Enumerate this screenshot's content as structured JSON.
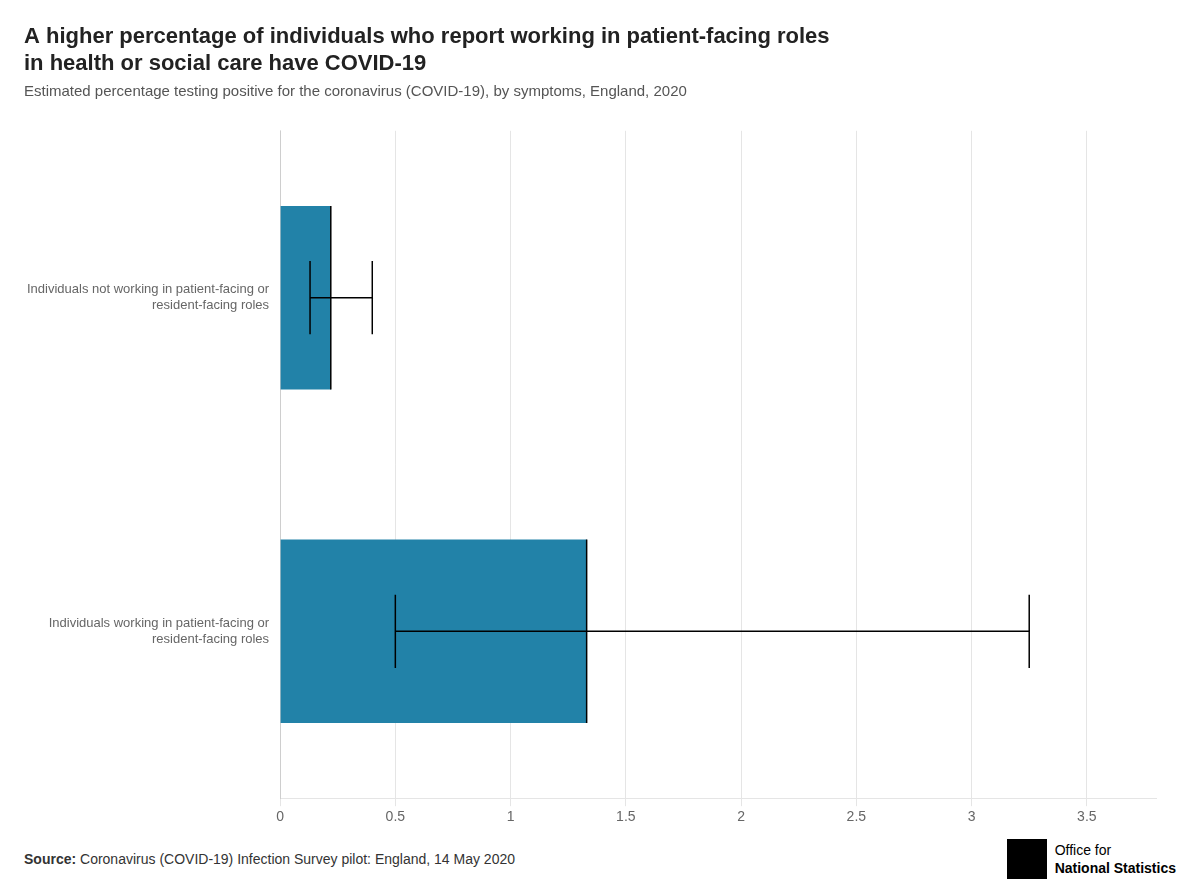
{
  "chart_data": {
    "type": "bar",
    "orientation": "horizontal",
    "title": "A higher percentage of individuals who report working in patient-facing roles\nin health or social care have COVID-19",
    "subtitle": "Estimated percentage testing positive for the coronavirus (COVID-19), by symptoms, England, 2020",
    "categories": [
      "Individuals working in patient-facing or\nresident-facing roles",
      "Individuals not working in patient-facing or\nresident-facing roles"
    ],
    "values": [
      1.33,
      0.22
    ],
    "ci_lower": [
      0.5,
      0.13
    ],
    "ci_upper": [
      3.25,
      0.4
    ],
    "color": "#2282a8",
    "xlim": [
      0,
      3.8
    ],
    "xticks": [
      0,
      0.5,
      1,
      1.5,
      2,
      2.5,
      3,
      3.5
    ],
    "grid": true,
    "annotations": [
      "Source: Coronavirus (COVID-19) Infection Survey pilot: England, 14 May 2020",
      "Office for",
      "National Statistics"
    ]
  }
}
